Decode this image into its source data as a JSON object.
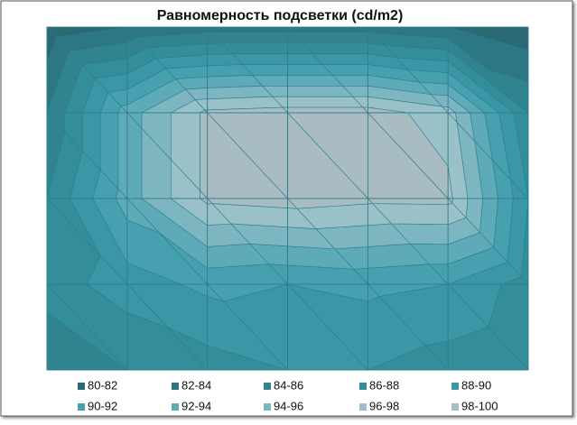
{
  "chart_data": {
    "type": "contour",
    "title": "Равномерность подсветки (cd/m2)",
    "levels": [
      80,
      82,
      84,
      86,
      88,
      90,
      92,
      94,
      96,
      98,
      100
    ],
    "series": [
      {
        "name": "80-82",
        "color": "#2b6a75"
      },
      {
        "name": "82-84",
        "color": "#2d7784"
      },
      {
        "name": "84-86",
        "color": "#30838f"
      },
      {
        "name": "86-88",
        "color": "#348d9b"
      },
      {
        "name": "88-90",
        "color": "#3b97a6"
      },
      {
        "name": "90-92",
        "color": "#46a0b0"
      },
      {
        "name": "92-94",
        "color": "#5eaab8"
      },
      {
        "name": "94-96",
        "color": "#7db6c1"
      },
      {
        "name": "96-98",
        "color": "#9ac0c8"
      },
      {
        "name": "98-100",
        "color": "#a9bcc2"
      }
    ],
    "z": [
      [
        80.5,
        82,
        83,
        83,
        83,
        82,
        80.5
      ],
      [
        84,
        93,
        98.5,
        99,
        99,
        97,
        86
      ],
      [
        86,
        93,
        98.5,
        99,
        98.5,
        98.6,
        88
      ],
      [
        87,
        89,
        90.5,
        90,
        90.5,
        90,
        87
      ],
      [
        84,
        86,
        87,
        88,
        88,
        87,
        86
      ]
    ]
  }
}
